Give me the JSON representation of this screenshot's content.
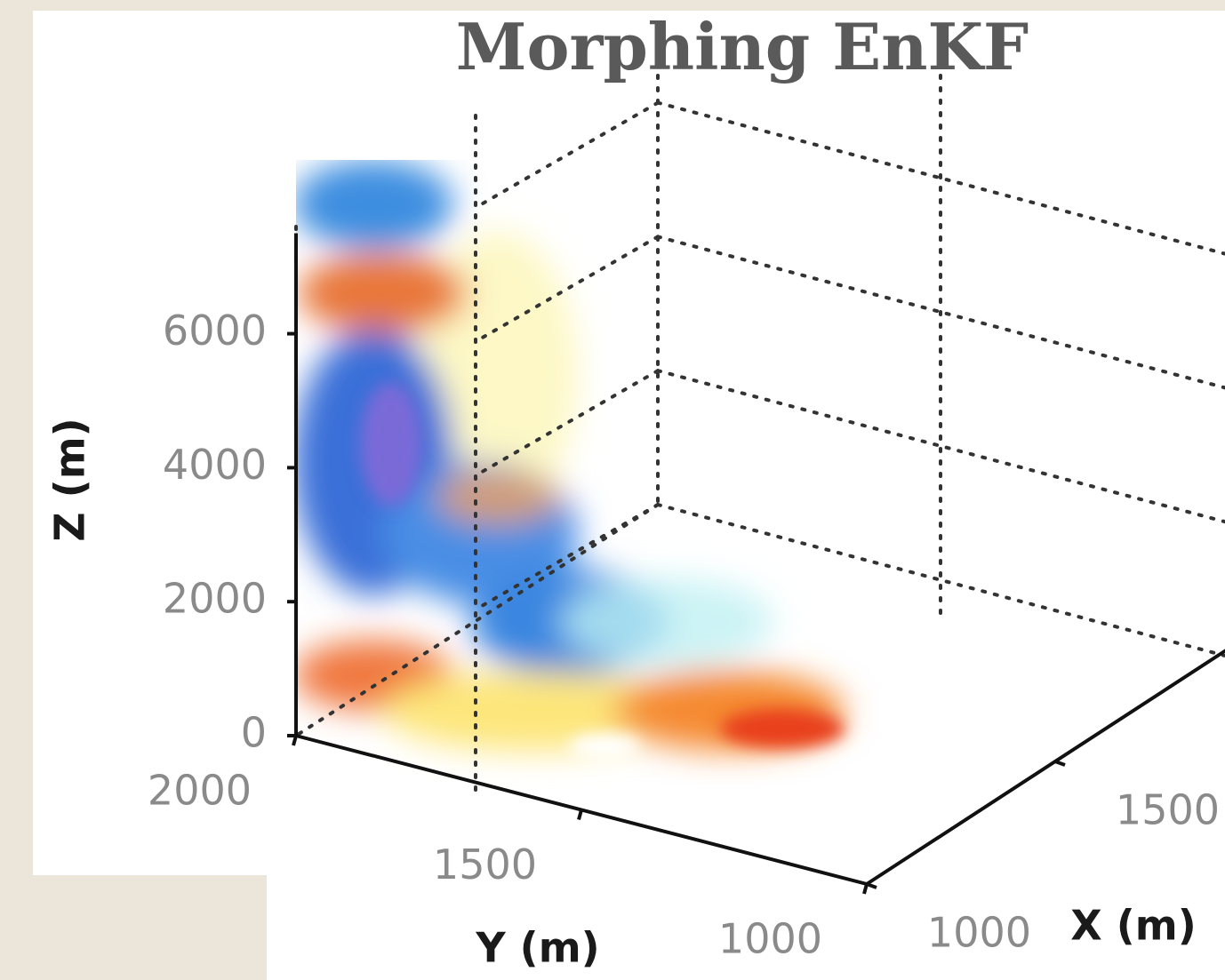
{
  "chart_data": {
    "type": "plume3d",
    "title": "Morphing EnKF",
    "zlabel": "Z (m)",
    "ylabel": "Y (m)",
    "xlabel": "X (m)",
    "zlim": [
      0,
      7500
    ],
    "zticks": [
      0,
      2000,
      4000,
      6000
    ],
    "ylim": [
      1000,
      2000
    ],
    "yticks": [
      2000,
      1500,
      1000
    ],
    "xlim": [
      1000,
      2000
    ],
    "xticks": [
      1000,
      1500
    ],
    "grid": true
  }
}
